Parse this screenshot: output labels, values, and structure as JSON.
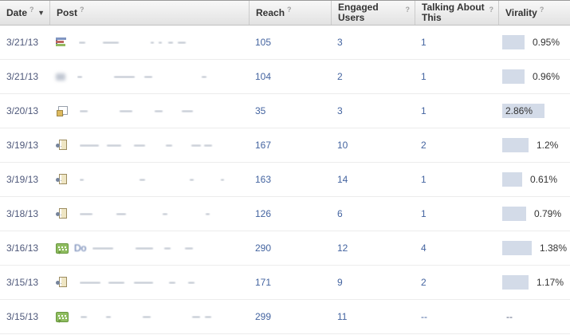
{
  "header": {
    "columns": [
      {
        "label": "Date",
        "help": "?",
        "sorted": true
      },
      {
        "label": "Post",
        "help": "?"
      },
      {
        "label": "Reach",
        "help": "?"
      },
      {
        "label": "Engaged Users",
        "help": "?"
      },
      {
        "label": "Talking About This",
        "help": "?"
      },
      {
        "label": "Virality",
        "help": "?"
      }
    ],
    "sort_arrow": "▼"
  },
  "rows": [
    {
      "date": "3/21/13",
      "icon": "question-chart-icon",
      "post_prefix": "",
      "reach": "105",
      "engaged_users": "3",
      "talking_about_this": "1",
      "virality": "0.95%",
      "virality_bar_width": 28,
      "virality_label_inside": false,
      "redacted_segments": [
        [
          8,
          22
        ],
        [
          20,
          40
        ],
        [
          4,
          6
        ],
        [
          4,
          8
        ],
        [
          6,
          6
        ],
        [
          10,
          0
        ]
      ]
    },
    {
      "date": "3/21/13",
      "icon": "blurred-post-icon",
      "post_prefix": "",
      "reach": "104",
      "engaged_users": "2",
      "talking_about_this": "1",
      "virality": "0.96%",
      "virality_bar_width": 28,
      "virality_label_inside": false,
      "redacted_segments": [
        [
          6,
          40
        ],
        [
          26,
          12
        ],
        [
          10,
          62
        ],
        [
          6,
          0
        ]
      ]
    },
    {
      "date": "3/20/13",
      "icon": "photo-icon",
      "post_prefix": "",
      "reach": "35",
      "engaged_users": "3",
      "talking_about_this": "1",
      "virality": "2.86%",
      "virality_bar_width": 53,
      "virality_label_inside": true,
      "redacted_segments": [
        [
          10,
          40
        ],
        [
          16,
          28
        ],
        [
          10,
          24
        ],
        [
          14,
          0
        ]
      ]
    },
    {
      "date": "3/19/13",
      "icon": "link-icon",
      "post_prefix": "",
      "reach": "167",
      "engaged_users": "10",
      "talking_about_this": "2",
      "virality": "1.2%",
      "virality_bar_width": 33,
      "virality_label_inside": false,
      "redacted_segments": [
        [
          24,
          10
        ],
        [
          18,
          16
        ],
        [
          14,
          26
        ],
        [
          8,
          24
        ],
        [
          12,
          4
        ],
        [
          10,
          0
        ]
      ]
    },
    {
      "date": "3/19/13",
      "icon": "link-icon",
      "post_prefix": "",
      "reach": "163",
      "engaged_users": "14",
      "talking_about_this": "1",
      "virality": "0.61%",
      "virality_bar_width": 25,
      "virality_label_inside": false,
      "redacted_segments": [
        [
          5,
          70
        ],
        [
          7,
          56
        ],
        [
          5,
          34
        ],
        [
          4,
          0
        ]
      ]
    },
    {
      "date": "3/18/13",
      "icon": "link-icon",
      "post_prefix": "",
      "reach": "126",
      "engaged_users": "6",
      "talking_about_this": "1",
      "virality": "0.79%",
      "virality_bar_width": 30,
      "virality_label_inside": false,
      "redacted_segments": [
        [
          16,
          30
        ],
        [
          12,
          46
        ],
        [
          6,
          48
        ],
        [
          5,
          0
        ]
      ]
    },
    {
      "date": "3/16/13",
      "icon": "status-update-icon",
      "post_prefix": "Do",
      "reach": "290",
      "engaged_users": "12",
      "talking_about_this": "4",
      "virality": "1.38%",
      "virality_bar_width": 37,
      "virality_label_inside": false,
      "redacted_segments": [
        [
          26,
          28
        ],
        [
          22,
          14
        ],
        [
          8,
          18
        ],
        [
          10,
          0
        ]
      ]
    },
    {
      "date": "3/15/13",
      "icon": "link-icon",
      "post_prefix": "",
      "reach": "171",
      "engaged_users": "9",
      "talking_about_this": "2",
      "virality": "1.17%",
      "virality_bar_width": 33,
      "virality_label_inside": false,
      "redacted_segments": [
        [
          26,
          10
        ],
        [
          20,
          12
        ],
        [
          24,
          20
        ],
        [
          8,
          16
        ],
        [
          8,
          0
        ]
      ]
    },
    {
      "date": "3/15/13",
      "icon": "status-update-icon",
      "post_prefix": "",
      "reach": "299",
      "engaged_users": "11",
      "talking_about_this": "--",
      "virality": "--",
      "virality_bar_width": 0,
      "virality_label_inside": false,
      "redacted_segments": [
        [
          8,
          24
        ],
        [
          6,
          40
        ],
        [
          10,
          52
        ],
        [
          10,
          6
        ],
        [
          8,
          0
        ]
      ]
    }
  ],
  "colors": {
    "virality_bar": "#d3dbe8",
    "number_text": "#4464a0",
    "date_text": "#4e587a",
    "header_text": "#333333"
  }
}
